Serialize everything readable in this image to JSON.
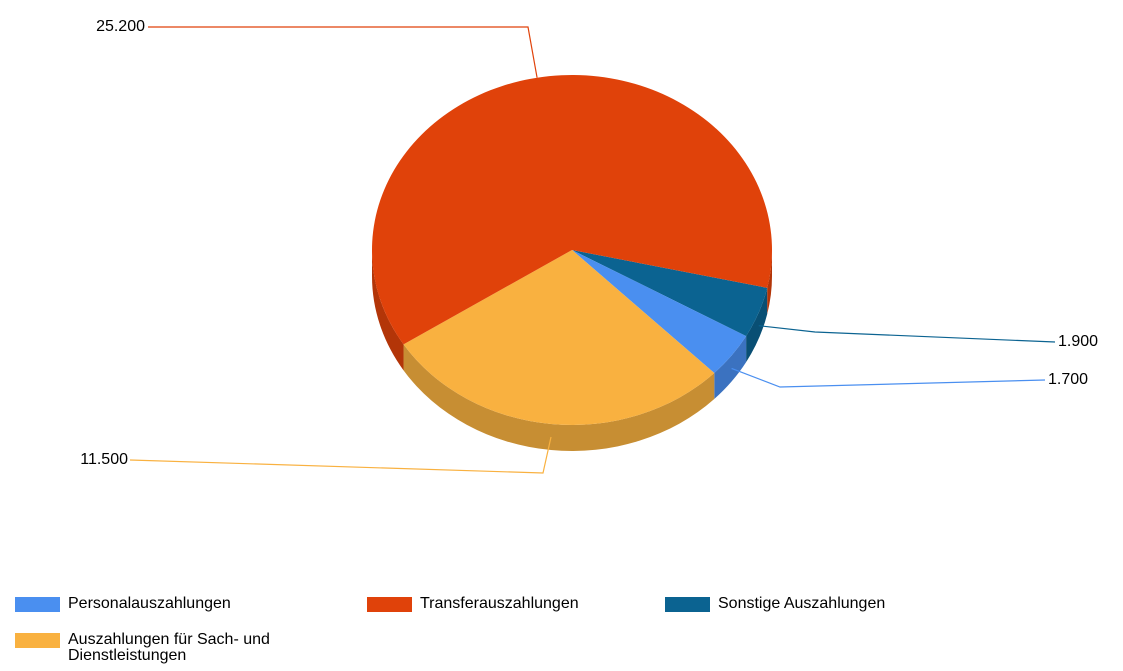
{
  "chart_data": {
    "type": "pie",
    "categories": [
      "Personalauszahlungen",
      "Transferauszahlungen",
      "Sonstige Auszahlungen",
      "Auszahlungen für Sach- und Dienstleistungen"
    ],
    "values": [
      1700,
      25200,
      1900,
      11500
    ],
    "value_labels": [
      "1.700",
      "25.200",
      "1.900",
      "11.500"
    ],
    "colors": [
      "#4a8ff0",
      "#e0420a",
      "#0b6391",
      "#f9b140"
    ],
    "legend": "bottom"
  }
}
